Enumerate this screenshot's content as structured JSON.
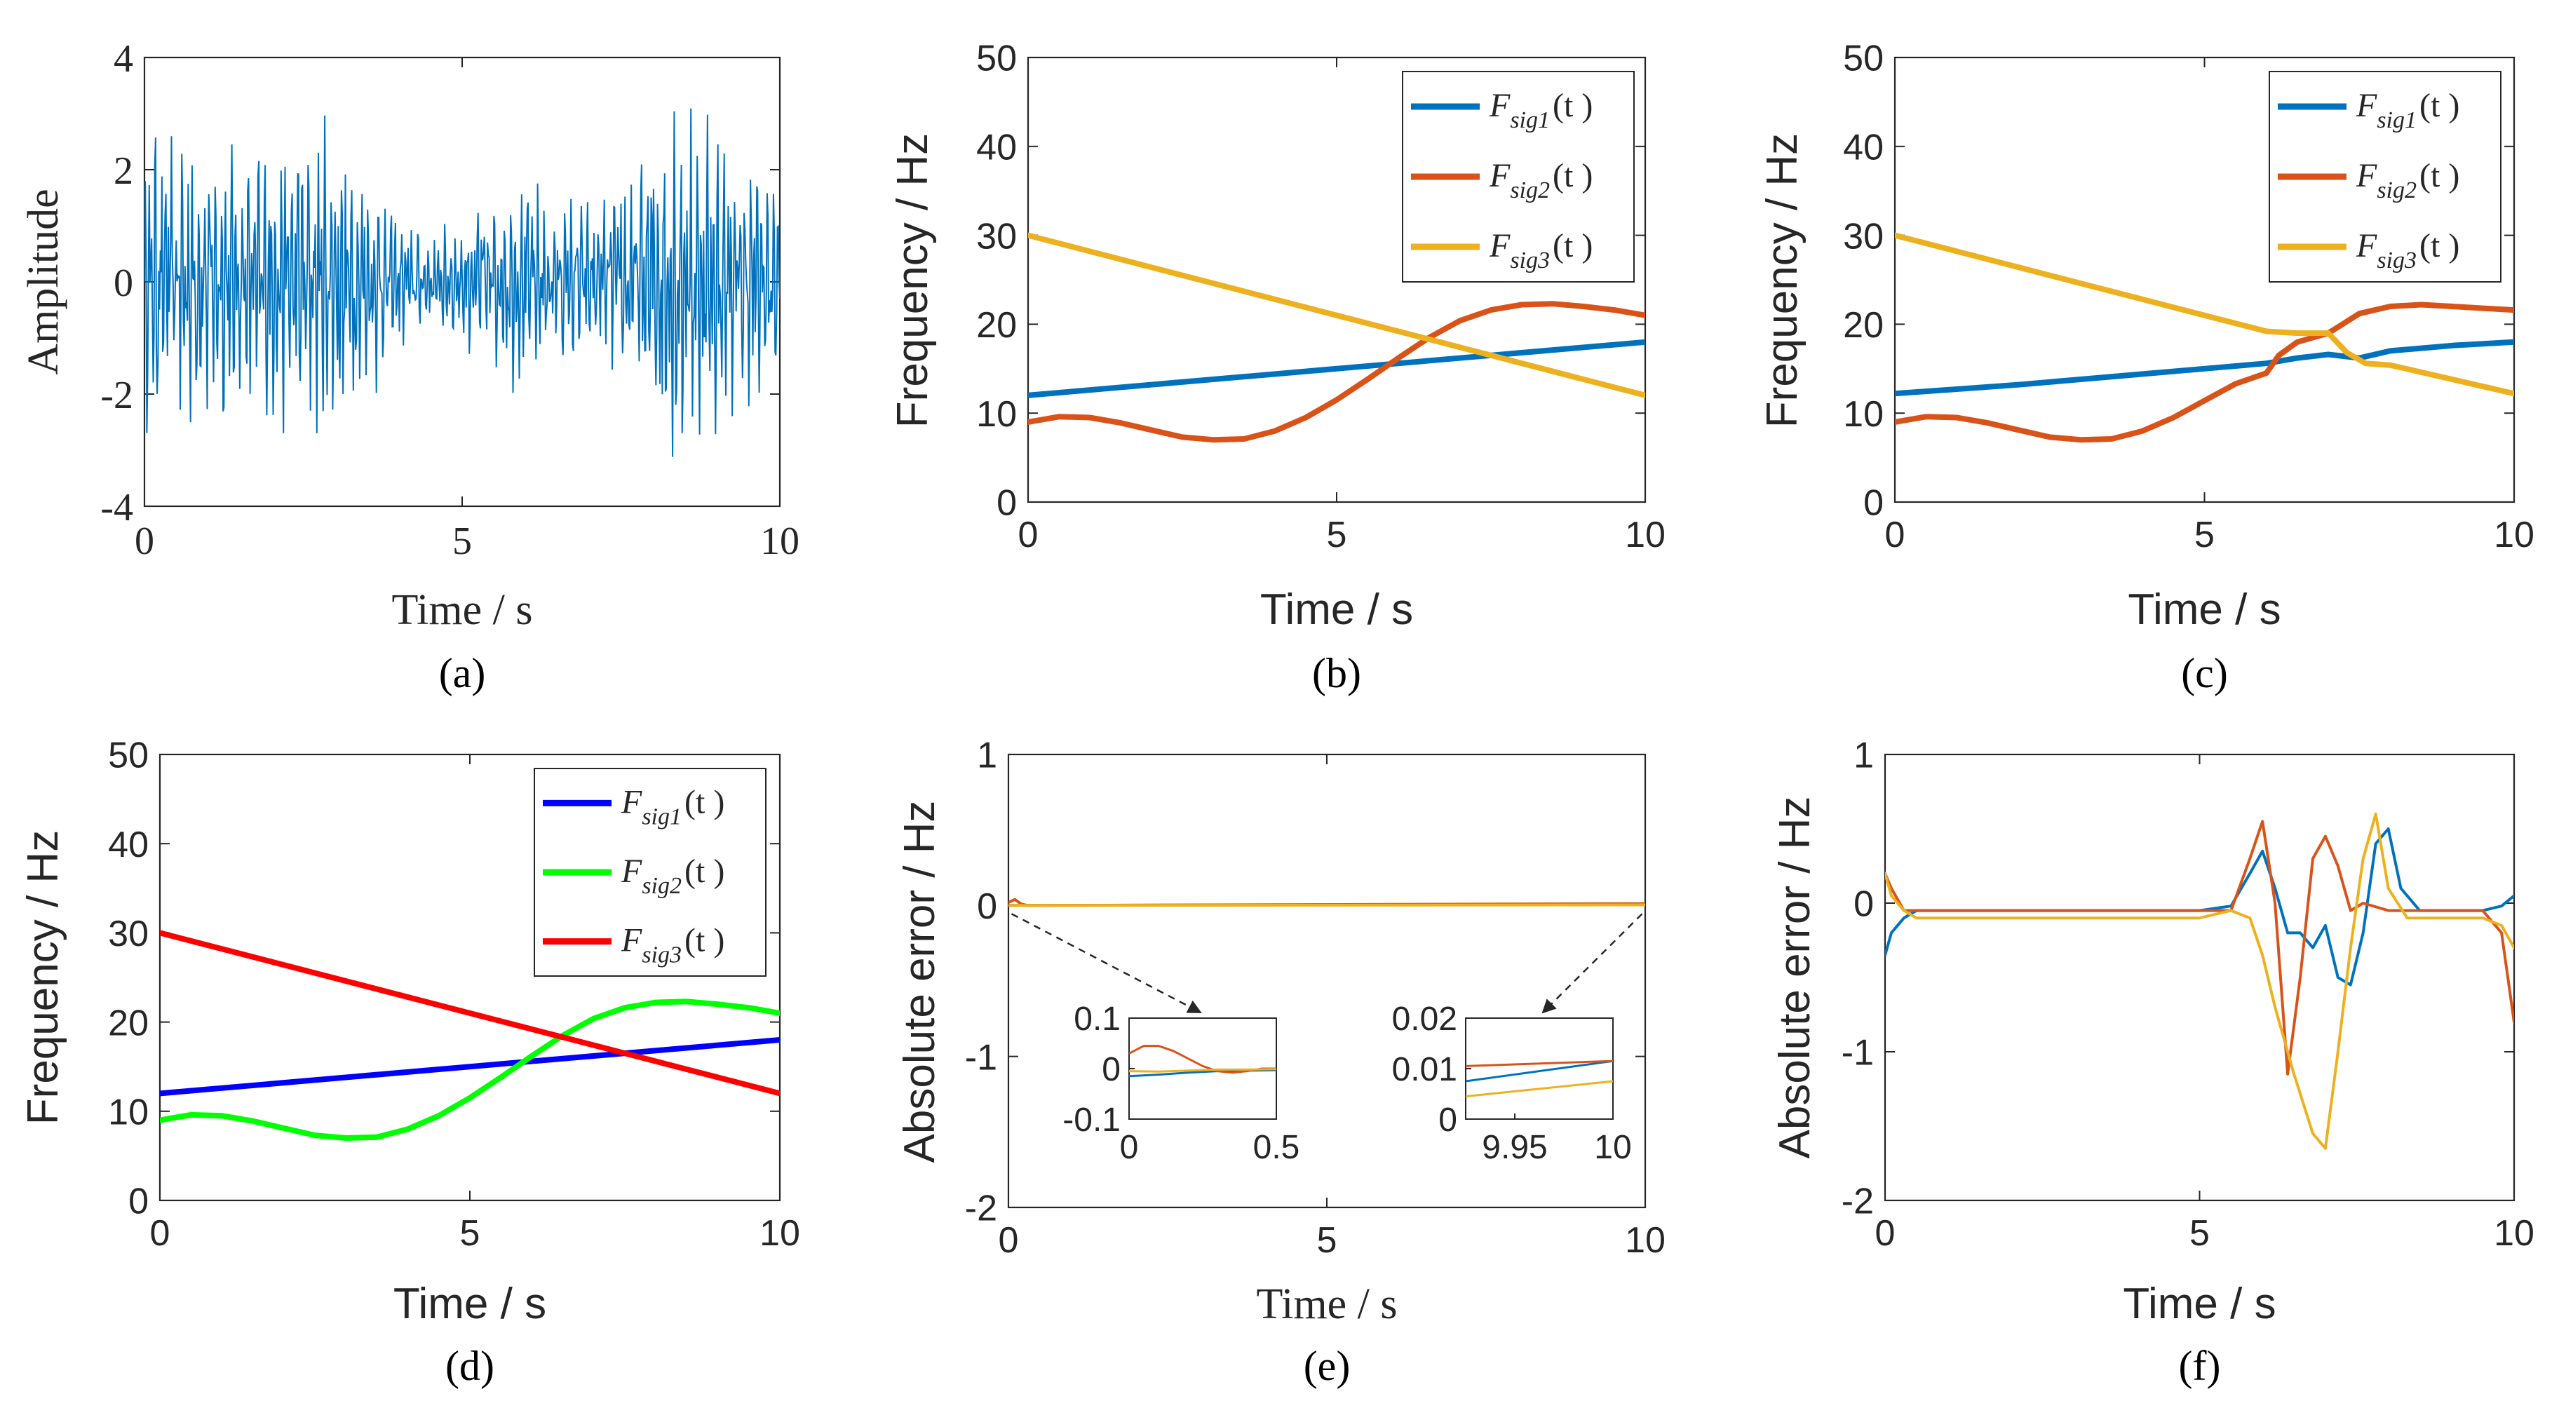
{
  "chart_data": [
    {
      "id": "a",
      "panel_label": "(a)",
      "type": "line",
      "xlabel": "Time / s",
      "ylabel": "Amplitude",
      "xlim": [
        0,
        10
      ],
      "ylim": [
        -4,
        4
      ],
      "xticks": [
        "0",
        "5",
        "10"
      ],
      "yticks": [
        "4",
        "2",
        "0",
        "-2",
        "-4"
      ],
      "series": [
        {
          "color": "#0072BD",
          "description": "dense multicomponent signal, amplitude roughly between -3.2 and 3.3"
        }
      ]
    },
    {
      "id": "b",
      "panel_label": "(b)",
      "type": "line",
      "xlabel": "Time / s",
      "ylabel": "Frequency / Hz",
      "xlim": [
        0,
        10
      ],
      "ylim": [
        0,
        50
      ],
      "xticks": [
        "0",
        "5",
        "10"
      ],
      "yticks": [
        "50",
        "40",
        "30",
        "20",
        "10",
        "0"
      ],
      "legend_position": "top-right",
      "series": [
        {
          "legend": [
            "F",
            "sig1",
            "(t )"
          ],
          "color": "#0072BD",
          "x": [
            0,
            10
          ],
          "y": [
            12,
            18
          ]
        },
        {
          "legend": [
            "F",
            "sig2",
            "(t )"
          ],
          "color": "#D95319",
          "x": [
            0,
            0.5,
            1,
            1.5,
            2,
            2.5,
            3,
            3.5,
            4,
            4.5,
            5,
            5.5,
            6,
            6.5,
            7,
            7.5,
            8,
            8.5,
            9,
            9.5,
            10
          ],
          "y": [
            9,
            9.6,
            9.5,
            8.9,
            8.1,
            7.3,
            7.0,
            7.1,
            8.0,
            9.5,
            11.5,
            13.8,
            16.2,
            18.5,
            20.4,
            21.6,
            22.2,
            22.3,
            22.0,
            21.6,
            21.0
          ]
        },
        {
          "legend": [
            "F",
            "sig3",
            "(t )"
          ],
          "color": "#EDB120",
          "x": [
            0,
            10
          ],
          "y": [
            30,
            12
          ]
        }
      ]
    },
    {
      "id": "c",
      "panel_label": "(c)",
      "type": "line",
      "xlabel": "Time / s",
      "ylabel": "Frequency / Hz",
      "xlim": [
        0,
        10
      ],
      "ylim": [
        0,
        50
      ],
      "xticks": [
        "0",
        "5",
        "10"
      ],
      "yticks": [
        "50",
        "40",
        "30",
        "20",
        "10",
        "0"
      ],
      "legend_position": "top-right",
      "series": [
        {
          "legend": [
            "F",
            "sig1",
            "(t )"
          ],
          "color": "#0072BD",
          "x": [
            0,
            1,
            2,
            3,
            4,
            5,
            5.5,
            6,
            6.5,
            7,
            7.5,
            8,
            8.5,
            9,
            9.5,
            10
          ],
          "y": [
            12.2,
            12.7,
            13.2,
            13.8,
            14.4,
            15.0,
            15.3,
            15.6,
            16.2,
            16.6,
            16.2,
            17.0,
            17.3,
            17.6,
            17.8,
            18.0
          ]
        },
        {
          "legend": [
            "F",
            "sig2",
            "(t )"
          ],
          "color": "#D95319",
          "x": [
            0,
            0.5,
            1,
            1.5,
            2,
            2.5,
            3,
            3.5,
            4,
            4.5,
            5,
            5.5,
            6,
            6.2,
            6.5,
            7,
            7.5,
            8,
            8.5,
            9,
            9.5,
            10
          ],
          "y": [
            9,
            9.6,
            9.5,
            8.9,
            8.1,
            7.3,
            7.0,
            7.1,
            8.0,
            9.5,
            11.4,
            13.3,
            14.5,
            16.5,
            18.0,
            19.0,
            21.2,
            22.0,
            22.2,
            22.0,
            21.8,
            21.6
          ]
        },
        {
          "legend": [
            "F",
            "sig3",
            "(t )"
          ],
          "color": "#EDB120",
          "x": [
            0,
            1,
            2,
            3,
            4,
            5,
            5.5,
            6,
            6.5,
            7,
            7.3,
            7.6,
            8,
            8.5,
            9,
            9.5,
            10
          ],
          "y": [
            30,
            28.2,
            26.4,
            24.6,
            22.8,
            21.0,
            20.1,
            19.2,
            19.0,
            19.0,
            16.8,
            15.6,
            15.4,
            14.6,
            13.8,
            13.0,
            12.2
          ]
        }
      ]
    },
    {
      "id": "d",
      "panel_label": "(d)",
      "type": "line",
      "xlabel": "Time / s",
      "ylabel": "Frequency / Hz",
      "xlim": [
        0,
        10
      ],
      "ylim": [
        0,
        50
      ],
      "xticks": [
        "0",
        "5",
        "10"
      ],
      "yticks": [
        "50",
        "40",
        "30",
        "20",
        "10",
        "0"
      ],
      "legend_position": "top-right",
      "series": [
        {
          "legend": [
            "F",
            "sig1",
            "(t )"
          ],
          "color": "#0000FF",
          "x": [
            0,
            10
          ],
          "y": [
            12,
            18
          ]
        },
        {
          "legend": [
            "F",
            "sig2",
            "(t )"
          ],
          "color": "#00FF00",
          "x": [
            0,
            0.5,
            1,
            1.5,
            2,
            2.5,
            3,
            3.5,
            4,
            4.5,
            5,
            5.5,
            6,
            6.5,
            7,
            7.5,
            8,
            8.5,
            9,
            9.5,
            10
          ],
          "y": [
            9,
            9.6,
            9.5,
            8.9,
            8.1,
            7.3,
            7.0,
            7.1,
            8.0,
            9.5,
            11.5,
            13.8,
            16.2,
            18.5,
            20.4,
            21.6,
            22.2,
            22.3,
            22.0,
            21.6,
            21.0
          ]
        },
        {
          "legend": [
            "F",
            "sig3",
            "(t )"
          ],
          "color": "#FF0000",
          "x": [
            0,
            10
          ],
          "y": [
            30,
            12
          ]
        }
      ]
    },
    {
      "id": "e",
      "panel_label": "(e)",
      "type": "line",
      "xlabel": "Time / s",
      "ylabel": "Absolute error / Hz",
      "xlim": [
        0,
        10
      ],
      "ylim": [
        -2,
        1
      ],
      "xticks": [
        "0",
        "5",
        "10"
      ],
      "yticks": [
        "1",
        "0",
        "-1",
        "-2"
      ],
      "series": [
        {
          "color": "#0072BD",
          "x": [
            0,
            10
          ],
          "y": [
            0,
            0.008
          ]
        },
        {
          "color": "#D95319",
          "x": [
            0,
            0.1,
            0.2,
            0.3,
            10
          ],
          "y": [
            0.02,
            0.04,
            0.01,
            0,
            0.012
          ]
        },
        {
          "color": "#EDB120",
          "x": [
            0,
            10
          ],
          "y": [
            0,
            0.004
          ]
        }
      ],
      "insets": [
        {
          "xlim": [
            0,
            0.5
          ],
          "ylim": [
            -0.1,
            0.1
          ],
          "xticks": [
            "0",
            "0.5"
          ],
          "yticks": [
            "0.1",
            "0",
            "-0.1"
          ],
          "series": [
            {
              "color": "#0072BD",
              "x": [
                0,
                0.1,
                0.2,
                0.3,
                0.4,
                0.5
              ],
              "y": [
                -0.015,
                -0.012,
                -0.008,
                -0.005,
                -0.004,
                -0.003
              ]
            },
            {
              "color": "#D95319",
              "x": [
                0,
                0.05,
                0.1,
                0.15,
                0.2,
                0.25,
                0.3,
                0.35,
                0.4,
                0.45,
                0.5
              ],
              "y": [
                0.03,
                0.045,
                0.045,
                0.035,
                0.02,
                0.005,
                -0.005,
                -0.008,
                -0.005,
                0,
                0
              ]
            },
            {
              "color": "#EDB120",
              "x": [
                0,
                0.1,
                0.2,
                0.3,
                0.4,
                0.5
              ],
              "y": [
                -0.005,
                -0.006,
                -0.004,
                -0.002,
                -0.002,
                -0.001
              ]
            }
          ]
        },
        {
          "xlim": [
            9.925,
            10
          ],
          "ylim": [
            0,
            0.02
          ],
          "xticks": [
            "9.95",
            "10"
          ],
          "yticks": [
            "0.02",
            "0.01",
            "0"
          ],
          "series": [
            {
              "color": "#0072BD",
              "x": [
                9.925,
                10
              ],
              "y": [
                0.0075,
                0.0115
              ]
            },
            {
              "color": "#D95319",
              "x": [
                9.925,
                10
              ],
              "y": [
                0.0105,
                0.0115
              ]
            },
            {
              "color": "#EDB120",
              "x": [
                9.925,
                10
              ],
              "y": [
                0.0045,
                0.0075
              ]
            }
          ]
        }
      ]
    },
    {
      "id": "f",
      "panel_label": "(f)",
      "type": "line",
      "xlabel": "Time / s",
      "ylabel": "Absolute error / Hz",
      "xlim": [
        0,
        10
      ],
      "ylim": [
        -2,
        1
      ],
      "xticks": [
        "0",
        "5",
        "10"
      ],
      "yticks": [
        "1",
        "0",
        "-1",
        "-2"
      ],
      "series": [
        {
          "color": "#0072BD",
          "x": [
            0,
            0.1,
            0.3,
            0.5,
            1,
            2,
            3,
            4,
            5,
            5.5,
            5.8,
            6.0,
            6.2,
            6.4,
            6.6,
            6.8,
            7.0,
            7.2,
            7.4,
            7.6,
            7.8,
            8.0,
            8.2,
            8.5,
            9,
            9.5,
            9.8,
            10
          ],
          "y": [
            -0.35,
            -0.2,
            -0.1,
            -0.05,
            -0.05,
            -0.05,
            -0.05,
            -0.05,
            -0.05,
            -0.02,
            0.2,
            0.35,
            0.1,
            -0.2,
            -0.2,
            -0.3,
            -0.15,
            -0.5,
            -0.55,
            -0.2,
            0.4,
            0.5,
            0.1,
            -0.05,
            -0.05,
            -0.05,
            -0.02,
            0.05
          ]
        },
        {
          "color": "#D95319",
          "x": [
            0,
            0.1,
            0.3,
            0.5,
            1,
            2,
            3,
            4,
            5,
            5.5,
            5.8,
            6.0,
            6.2,
            6.4,
            6.6,
            6.8,
            7.0,
            7.2,
            7.4,
            7.6,
            8.0,
            8.5,
            9,
            9.5,
            9.8,
            10
          ],
          "y": [
            0.2,
            0.1,
            -0.05,
            -0.05,
            -0.05,
            -0.05,
            -0.05,
            -0.05,
            -0.05,
            -0.05,
            0.3,
            0.55,
            0.0,
            -1.15,
            -0.5,
            0.3,
            0.45,
            0.25,
            -0.05,
            0.0,
            -0.05,
            -0.05,
            -0.05,
            -0.05,
            -0.2,
            -0.8
          ]
        },
        {
          "color": "#EDB120",
          "x": [
            0,
            0.1,
            0.3,
            0.5,
            1,
            2,
            3,
            4,
            5,
            5.5,
            5.8,
            6.0,
            6.2,
            6.5,
            6.8,
            7.0,
            7.2,
            7.4,
            7.6,
            7.8,
            8.0,
            8.3,
            8.6,
            9,
            9.5,
            9.8,
            10
          ],
          "y": [
            0.2,
            0.05,
            -0.05,
            -0.1,
            -0.1,
            -0.1,
            -0.1,
            -0.1,
            -0.1,
            -0.05,
            -0.1,
            -0.35,
            -0.7,
            -1.15,
            -1.55,
            -1.65,
            -1.0,
            -0.3,
            0.3,
            0.6,
            0.1,
            -0.1,
            -0.1,
            -0.1,
            -0.1,
            -0.15,
            -0.3
          ]
        }
      ]
    }
  ]
}
